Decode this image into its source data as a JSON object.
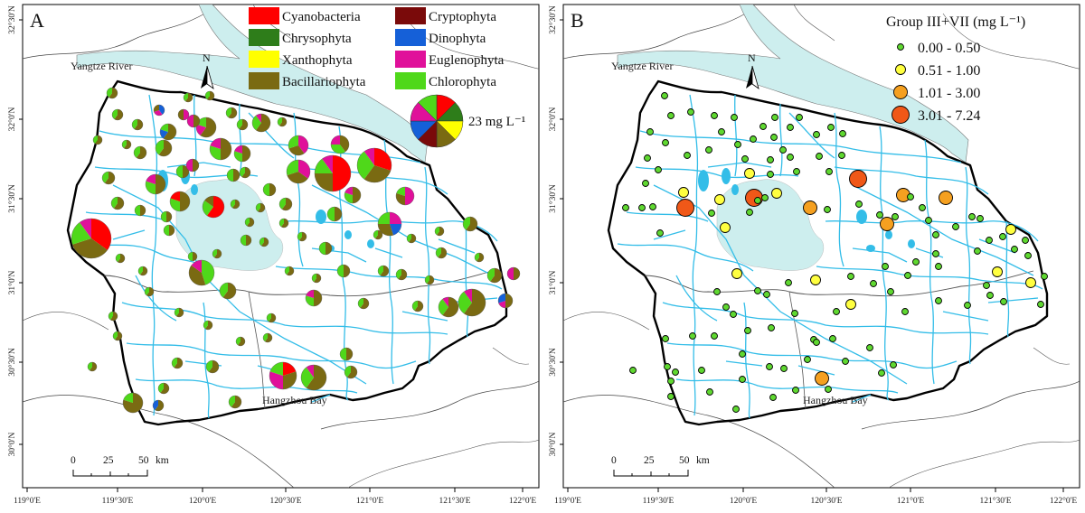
{
  "panels": {
    "a": {
      "letter": "A"
    },
    "b": {
      "letter": "B"
    }
  },
  "axes": {
    "lat_labels": [
      "32°30'N",
      "32°0'N",
      "31°30'N",
      "31°0'N",
      "30°30'N",
      "30°0'N"
    ],
    "lon_labels": [
      "119°0'E",
      "119°30'E",
      "120°0'E",
      "120°30'E",
      "121°0'E",
      "121°30'E",
      "122°0'E"
    ]
  },
  "places": {
    "river": "Yangtze River",
    "bay": "Hangzhou Bay"
  },
  "north_label": "N",
  "scalebar": {
    "ticks": [
      "0",
      "25",
      "50"
    ],
    "unit": "km"
  },
  "legend_a": {
    "groups": [
      {
        "name": "Cyanobacteria",
        "color": "#ff0000"
      },
      {
        "name": "Chrysophyta",
        "color": "#2e7d1a"
      },
      {
        "name": "Xanthophyta",
        "color": "#ffff00"
      },
      {
        "name": "Bacillariophyta",
        "color": "#7a6a12"
      },
      {
        "name": "Cryptophyta",
        "color": "#7a0a0a"
      },
      {
        "name": "Dinophyta",
        "color": "#1560d8"
      },
      {
        "name": "Euglenophyta",
        "color": "#e0109a"
      },
      {
        "name": "Chlorophyta",
        "color": "#4fd81a"
      }
    ],
    "reference": "23 mg L⁻¹"
  },
  "legend_b": {
    "title": "Group III+VII (mg L⁻¹)",
    "classes": [
      {
        "label": "0.00 - 0.50",
        "color": "#5fd830"
      },
      {
        "label": "0.51 - 1.00",
        "color": "#ffff40"
      },
      {
        "label": "1.01 - 3.00",
        "color": "#f5a020"
      },
      {
        "label": "3.01 - 7.24",
        "color": "#f05818"
      }
    ]
  },
  "colors": {
    "water": "#cdeeee",
    "canal": "#33bde8",
    "boundary": "#000000"
  }
}
